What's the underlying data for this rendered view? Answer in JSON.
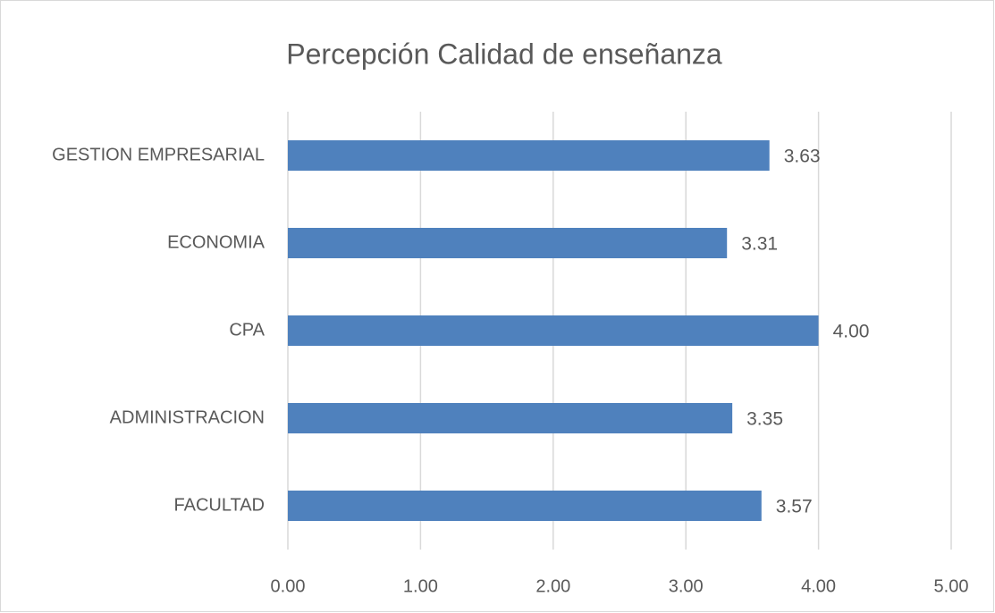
{
  "chart_data": {
    "type": "bar",
    "orientation": "horizontal",
    "title": "Percepción Calidad de enseñanza",
    "categories": [
      "GESTION EMPRESARIAL",
      "ECONOMIA",
      "CPA",
      "ADMINISTRACION",
      "FACULTAD"
    ],
    "values": [
      3.63,
      3.31,
      4,
      3.35,
      3.57
    ],
    "value_labels": [
      "3.63",
      "3.31",
      "4.00",
      "3.35",
      "3.57"
    ],
    "color": "#4f81bd",
    "xlim": [
      0,
      5
    ],
    "xticks": [
      {
        "value": 0,
        "label": "0.00"
      },
      {
        "value": 1,
        "label": "1.00"
      },
      {
        "value": 2,
        "label": "2.00"
      },
      {
        "value": 3,
        "label": "3.00"
      },
      {
        "value": 4,
        "label": "4.00"
      },
      {
        "value": 5,
        "label": "5.00"
      }
    ],
    "grid": true
  }
}
